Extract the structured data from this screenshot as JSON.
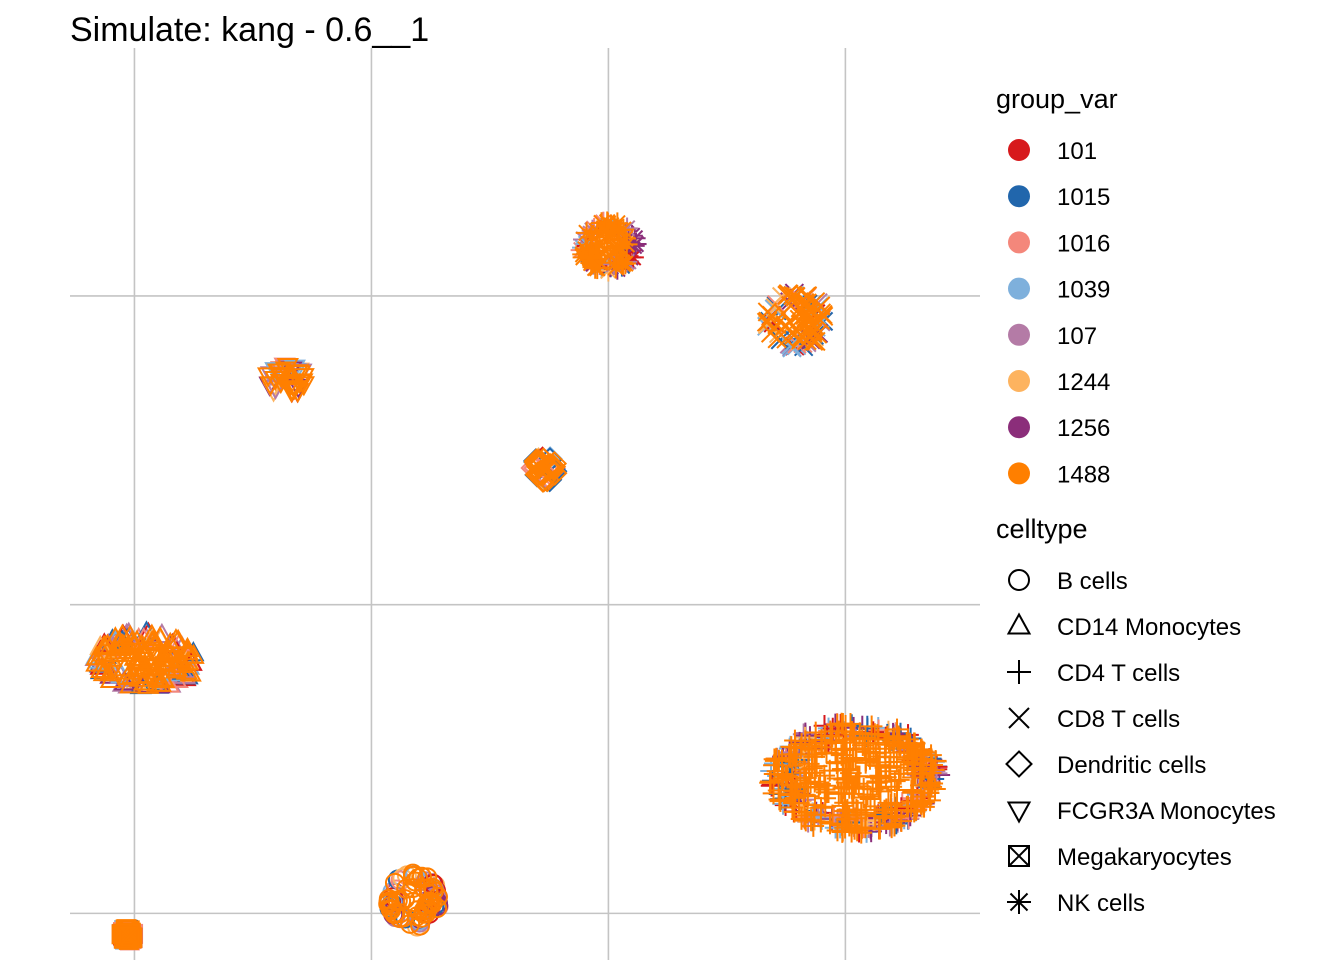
{
  "chart_data": {
    "type": "scatter",
    "title": "Simulate: kang - 0.6__1",
    "xlabel": "",
    "ylabel": "",
    "grid": true,
    "axis_ticks_labels_shown": false,
    "x_gridlines": [
      -10,
      0,
      10,
      20
    ],
    "y_gridlines": [
      -10,
      0,
      10,
      20
    ],
    "xlim": [
      -12.72,
      25.68
    ],
    "ylim": [
      -11.51,
      18.03
    ],
    "legend_position": "right",
    "color_legend": {
      "title": "group_var",
      "items": [
        {
          "label": "101",
          "color": "#d7191c"
        },
        {
          "label": "1015",
          "color": "#2166ac"
        },
        {
          "label": "1016",
          "color": "#f4877b"
        },
        {
          "label": "1039",
          "color": "#7eb0dc"
        },
        {
          "label": "107",
          "color": "#b47ba6"
        },
        {
          "label": "1244",
          "color": "#fdb35f"
        },
        {
          "label": "1256",
          "color": "#8b2e7a"
        },
        {
          "label": "1488",
          "color": "#ff7f00"
        }
      ]
    },
    "shape_legend": {
      "title": "celltype",
      "items": [
        {
          "label": "B cells",
          "shape": "circle-open"
        },
        {
          "label": "CD14 Monocytes",
          "shape": "triangle-up-open"
        },
        {
          "label": "CD4 T cells",
          "shape": "plus"
        },
        {
          "label": "CD8 T cells",
          "shape": "cross"
        },
        {
          "label": "Dendritic cells",
          "shape": "diamond-open"
        },
        {
          "label": "FCGR3A Monocytes",
          "shape": "triangle-down-open"
        },
        {
          "label": "Megakaryocytes",
          "shape": "square-cross"
        },
        {
          "label": "NK cells",
          "shape": "asterisk"
        }
      ]
    },
    "clusters": [
      {
        "celltype": "CD14 Monocytes",
        "center_x": -9.5,
        "center_y": -1.8,
        "spread_x": 2.2,
        "spread_y": 0.9
      },
      {
        "celltype": "CD4 T cells",
        "center_x": 20.4,
        "center_y": -5.6,
        "spread_x": 3.6,
        "spread_y": 1.8
      },
      {
        "celltype": "B cells",
        "center_x": 1.8,
        "center_y": -9.6,
        "spread_x": 1.1,
        "spread_y": 0.9
      },
      {
        "celltype": "FCGR3A Monocytes",
        "center_x": -3.6,
        "center_y": 7.3,
        "spread_x": 0.8,
        "spread_y": 0.5
      },
      {
        "celltype": "NK cells",
        "center_x": 10.0,
        "center_y": 11.6,
        "spread_x": 1.2,
        "spread_y": 0.8
      },
      {
        "celltype": "CD8 T cells",
        "center_x": 17.9,
        "center_y": 9.2,
        "spread_x": 1.3,
        "spread_y": 0.9
      },
      {
        "celltype": "Dendritic cells",
        "center_x": 7.3,
        "center_y": 4.4,
        "spread_x": 0.5,
        "spread_y": 0.4
      },
      {
        "celltype": "Megakaryocytes",
        "center_x": -10.3,
        "center_y": -10.7,
        "spread_x": 0.25,
        "spread_y": 0.2
      }
    ]
  }
}
